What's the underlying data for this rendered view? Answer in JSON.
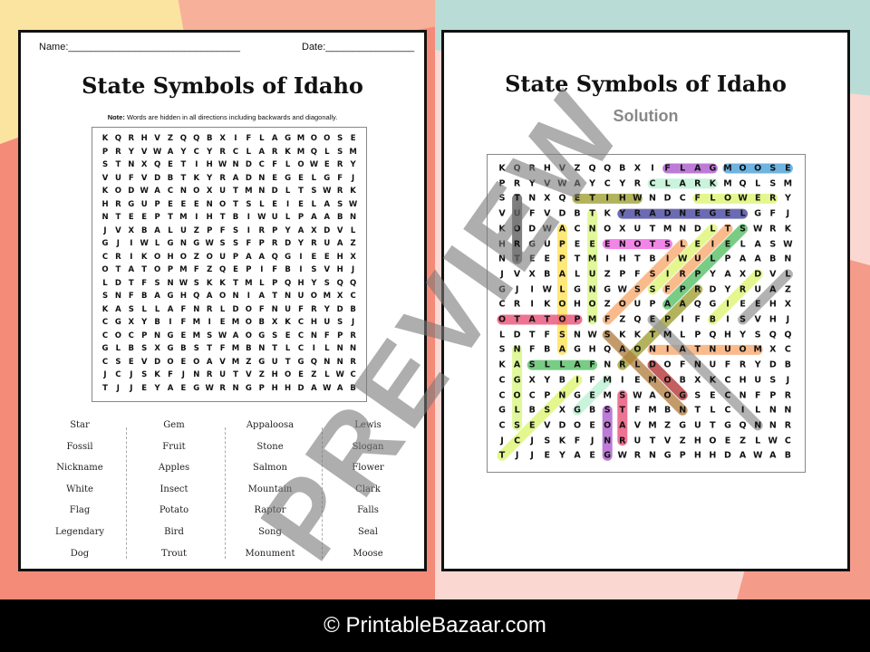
{
  "worksheet": {
    "name_label": "Name:_______________________________",
    "date_label": "Date:________________",
    "title": "State Symbols of Idaho",
    "note_bold": "Note:",
    "note": " Words are hidden in all directions including backwards and diagonally.",
    "grid": [
      "KQRHVZQQBXIFLAGMOOSE",
      "PRYVWAYCYRCLARKMQLSM",
      "STNXQETIHWNDCFLOWERY",
      "VUFVDBTKYRADNEGELGFJ",
      "KODWACNOXUTMNDLTSWRK",
      "HRGUPEEENOTSLEIELASW",
      "NTEEPTMIHTBIWULPAABN",
      "JVXBALUZPFSIRPYAXDVL",
      "GJIWLGNGWSSFPRDYRUAZ",
      "CRIKOHOZOUPAAQGIEEHX",
      "OTATOPMFZQEPIFBISVHJ",
      "LDTFSNWSKKTMLPQHYSQQ",
      "SNFBAGHQAONIATNUOMXC",
      "KASLLAFNRLDOFNUFRYDB",
      "CGXYBIFMIEMOBXKCHUSJ",
      "COCPNGEMSWAOGSECNFPR",
      "GLBSXGBSTFMBNTLCILNN",
      "CSEVDOEOAVMZGUTGQNNR",
      "JCJSKFJNRUTVZHOEZLWC",
      "TJJEYAEGWRNGPHHDAWAB"
    ],
    "word_columns": [
      [
        "Star",
        "Fossil",
        "Nickname",
        "White",
        "Flag",
        "Legendary",
        "Dog"
      ],
      [
        "Gem",
        "Fruit",
        "Apples",
        "Insect",
        "Potato",
        "Bird",
        "Trout"
      ],
      [
        "Appaloosa",
        "Stone",
        "Salmon",
        "Mountain",
        "Raptor",
        "Song",
        "Monument"
      ],
      [
        "Lewis",
        "Slogan",
        "Flower",
        "Clark",
        "Falls",
        "Seal",
        "Moose"
      ]
    ]
  },
  "solution": {
    "title": "State Symbols of Idaho",
    "subtitle": "Solution",
    "highlights": [
      {
        "word": "FLAG",
        "from": [
          0,
          11
        ],
        "to": [
          0,
          14
        ],
        "color": "#a64fc9"
      },
      {
        "word": "MOOSE",
        "from": [
          0,
          15
        ],
        "to": [
          0,
          19
        ],
        "color": "#3f9ad6"
      },
      {
        "word": "CLARK",
        "from": [
          1,
          10
        ],
        "to": [
          1,
          14
        ],
        "color": "#b8f0cf"
      },
      {
        "word": "WHITE",
        "from": [
          2,
          9
        ],
        "to": [
          2,
          5
        ],
        "color": "#9a9a28"
      },
      {
        "word": "FLOWER",
        "from": [
          2,
          13
        ],
        "to": [
          2,
          18
        ],
        "color": "#dcf56a"
      },
      {
        "word": "LEGENDARY",
        "from": [
          3,
          16
        ],
        "to": [
          3,
          8
        ],
        "color": "#3a3a9a"
      },
      {
        "word": "STONE",
        "from": [
          5,
          11
        ],
        "to": [
          5,
          7
        ],
        "color": "#ee5ee0"
      },
      {
        "word": "TROUT",
        "from": [
          6,
          1
        ],
        "to": [
          2,
          1
        ],
        "color": "#555555"
      },
      {
        "word": "APPALOOSA",
        "from": [
          4,
          4
        ],
        "to": [
          12,
          4
        ],
        "color": "#ffe14a"
      },
      {
        "word": "MONUMENT",
        "from": [
          10,
          6
        ],
        "to": [
          3,
          6
        ],
        "color": "#d6f57a"
      },
      {
        "word": "POTATO",
        "from": [
          10,
          5
        ],
        "to": [
          10,
          0
        ],
        "color": "#e8456e"
      },
      {
        "word": "MOUNTAIN",
        "from": [
          12,
          17
        ],
        "to": [
          12,
          10
        ],
        "color": "#f7a566"
      },
      {
        "word": "FALLS",
        "from": [
          13,
          6
        ],
        "to": [
          13,
          2
        ],
        "color": "#4cbb5c"
      },
      {
        "word": "SLOGAN",
        "from": [
          17,
          1
        ],
        "to": [
          12,
          1
        ],
        "color": "#d6f57a"
      },
      {
        "word": "STAR",
        "from": [
          15,
          8
        ],
        "to": [
          18,
          8
        ],
        "color": "#e8456e"
      },
      {
        "word": "SONG",
        "from": [
          16,
          7
        ],
        "to": [
          19,
          7
        ],
        "color": "#a64fc9"
      },
      {
        "word": "DOG",
        "from": [
          13,
          10
        ],
        "to": [
          15,
          12
        ],
        "color": "#b02a2a"
      },
      {
        "word": "FRUIT",
        "from": [
          8,
          11
        ],
        "to": [
          4,
          15
        ],
        "color": "#f7a566"
      },
      {
        "word": "FOSSIL",
        "from": [
          10,
          7
        ],
        "to": [
          5,
          12
        ],
        "color": "#f7a566"
      },
      {
        "word": "LEWIS",
        "from": [
          4,
          14
        ],
        "to": [
          8,
          10
        ],
        "color": "#dcf56a"
      },
      {
        "word": "APPLES",
        "from": [
          9,
          11
        ],
        "to": [
          4,
          16
        ],
        "color": "#4cbb5c"
      },
      {
        "word": "RAPTOR",
        "from": [
          8,
          13
        ],
        "to": [
          13,
          8
        ],
        "color": "#9a9a28"
      },
      {
        "word": "SALMON",
        "from": [
          11,
          7
        ],
        "to": [
          16,
          12
        ],
        "color": "#b07a3a"
      },
      {
        "word": "NICKNAME",
        "from": [
          17,
          17
        ],
        "to": [
          10,
          10
        ],
        "color": "#999999"
      },
      {
        "word": "SEAL",
        "from": [
          10,
          16
        ],
        "to": [
          7,
          19
        ],
        "color": "#999999"
      },
      {
        "word": "BIRD",
        "from": [
          10,
          14
        ],
        "to": [
          7,
          17
        ],
        "color": "#dcf56a"
      },
      {
        "word": "INSECT",
        "from": [
          14,
          5
        ],
        "to": [
          19,
          0
        ],
        "color": "#dcf56a"
      },
      {
        "word": "GEM",
        "from": [
          16,
          5
        ],
        "to": [
          14,
          7
        ],
        "color": "#b8f0cf"
      }
    ]
  },
  "watermark": "PREVIEW",
  "footer": "© PrintableBazaar.com"
}
